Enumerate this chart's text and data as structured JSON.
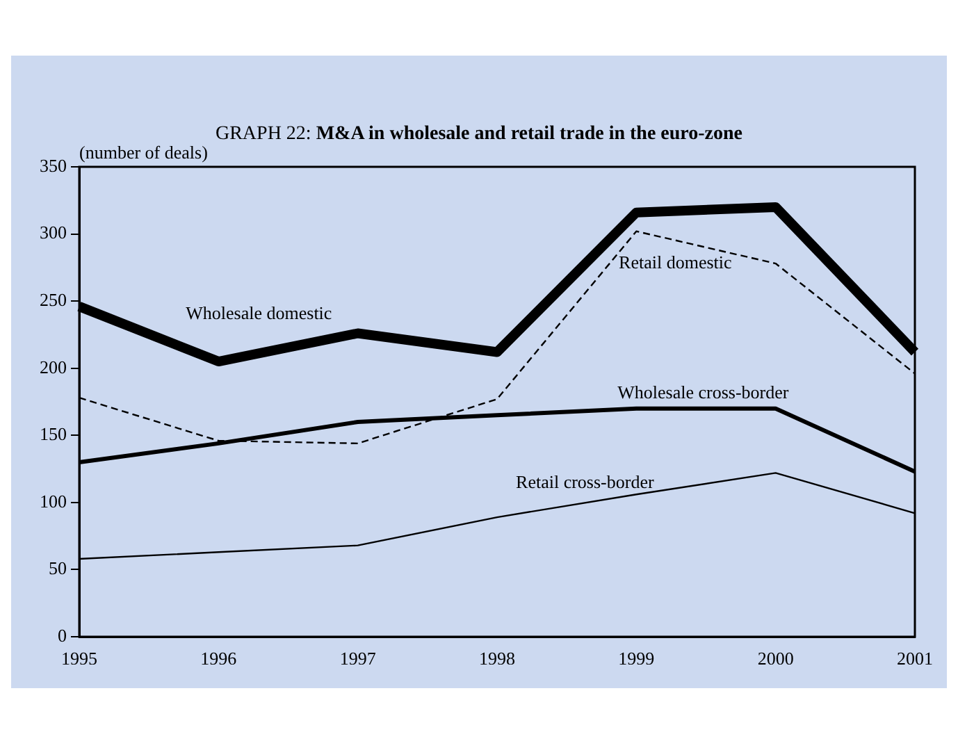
{
  "chart_data": {
    "type": "line",
    "title": "GRAPH 22: M&A in wholesale and retail trade in the euro-zone",
    "ylabel": "(number of deals)",
    "categories": [
      "1995",
      "1996",
      "1997",
      "1998",
      "1999",
      "2000",
      "2001"
    ],
    "series": [
      {
        "name": "Wholesale domestic",
        "color": "#000000",
        "values": [
          246,
          205,
          226,
          212,
          316,
          320,
          212
        ]
      },
      {
        "name": "Retail domestic",
        "color": "#000000",
        "line_style": "dashed",
        "values": [
          178,
          146,
          144,
          177,
          302,
          278,
          196
        ]
      },
      {
        "name": "Wholesale cross-border",
        "color": "#000000",
        "values": [
          130,
          144,
          160,
          165,
          170,
          170,
          123
        ]
      },
      {
        "name": "Retail cross-border",
        "color": "#000000",
        "values": [
          58,
          63,
          68,
          89,
          106,
          122,
          92
        ]
      }
    ],
    "ylim": [
      0,
      350
    ],
    "yticks": [
      0,
      50,
      100,
      150,
      200,
      250,
      300,
      350
    ],
    "grid": false,
    "legend": false,
    "marker": "none"
  }
}
